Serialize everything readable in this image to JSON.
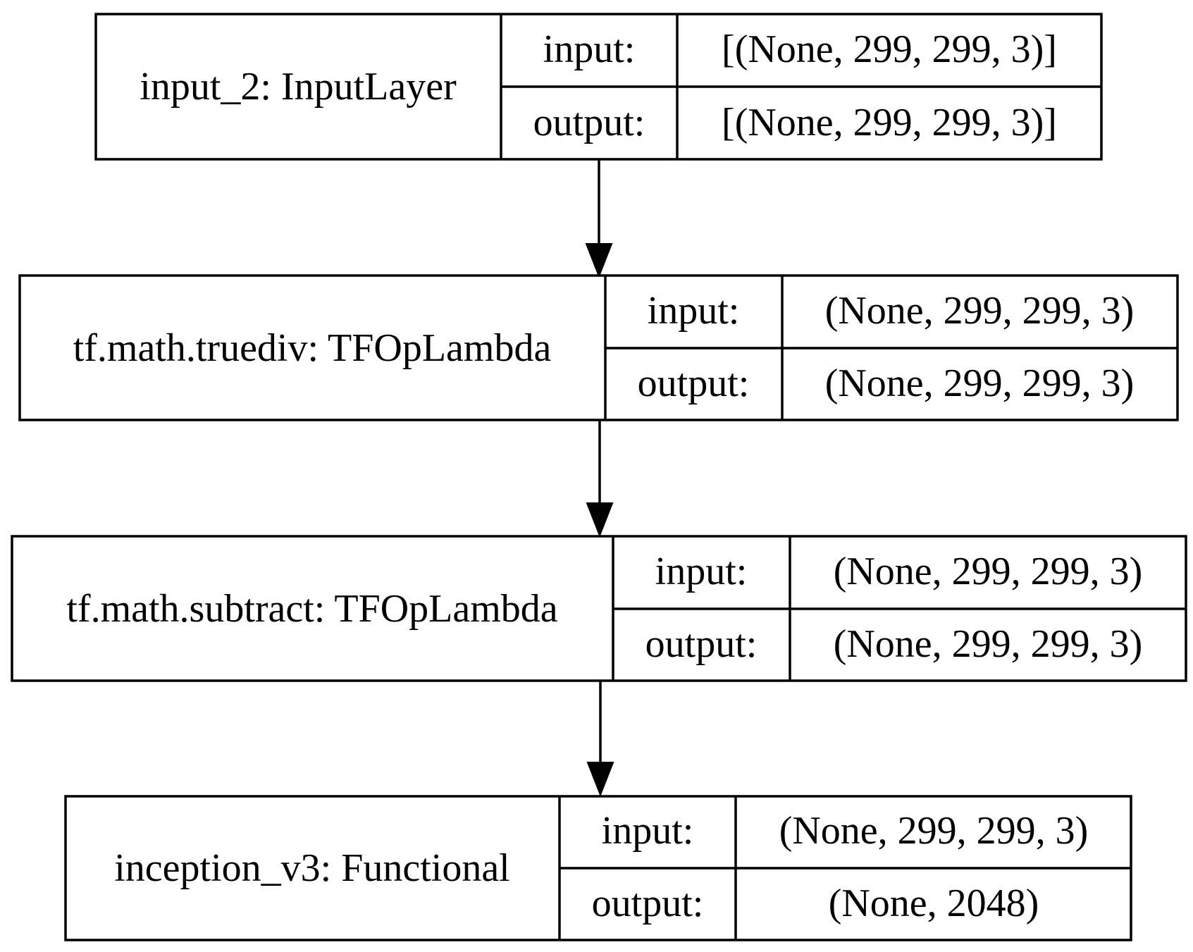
{
  "diagram": {
    "nodes": [
      {
        "id": "input_2",
        "label": "input_2: InputLayer",
        "input_label": "input:",
        "output_label": "output:",
        "input_shape": "[(None, 299, 299, 3)]",
        "output_shape": "[(None, 299, 299, 3)]"
      },
      {
        "id": "truediv",
        "label": "tf.math.truediv: TFOpLambda",
        "input_label": "input:",
        "output_label": "output:",
        "input_shape": "(None, 299, 299, 3)",
        "output_shape": "(None, 299, 299, 3)"
      },
      {
        "id": "subtract",
        "label": "tf.math.subtract: TFOpLambda",
        "input_label": "input:",
        "output_label": "output:",
        "input_shape": "(None, 299, 299, 3)",
        "output_shape": "(None, 299, 299, 3)"
      },
      {
        "id": "inception_v3",
        "label": "inception_v3: Functional",
        "input_label": "input:",
        "output_label": "output:",
        "input_shape": "(None, 299, 299, 3)",
        "output_shape": "(None, 2048)"
      }
    ],
    "edges": [
      {
        "from": "input_2",
        "to": "truediv"
      },
      {
        "from": "truediv",
        "to": "subtract"
      },
      {
        "from": "subtract",
        "to": "inception_v3"
      }
    ]
  }
}
